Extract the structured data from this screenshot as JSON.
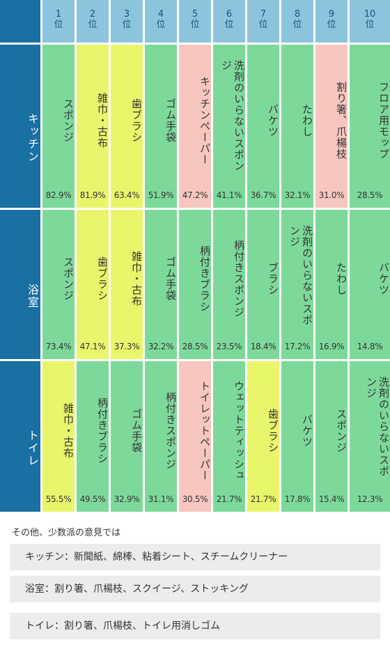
{
  "colors": {
    "header_bg": "#8cc4de",
    "row_header_bg": "#1a6fa3",
    "green": "#7dd99a",
    "yellow": "#e9f56a",
    "pink": "#f7c6bf",
    "other_box_bg": "#ececec"
  },
  "chart_data": {
    "type": "table",
    "rank_suffix": "位",
    "ranks": [
      "1",
      "2",
      "3",
      "4",
      "5",
      "6",
      "7",
      "8",
      "9",
      "10"
    ],
    "rows": [
      {
        "label": "キッチン",
        "items": [
          {
            "name": "スポンジ",
            "percent": "82.9%",
            "color": "green"
          },
          {
            "name": "雑巾・古布",
            "percent": "81.9%",
            "color": "yellow"
          },
          {
            "name": "歯ブラシ",
            "percent": "63.4%",
            "color": "yellow"
          },
          {
            "name": "ゴム手袋",
            "percent": "51.9%",
            "color": "green"
          },
          {
            "name": "キッチンペーパー",
            "percent": "47.2%",
            "color": "pink"
          },
          {
            "name": "洗剤のいらないスポンジ",
            "percent": "41.1%",
            "color": "green"
          },
          {
            "name": "バケツ",
            "percent": "36.7%",
            "color": "green"
          },
          {
            "name": "たわし",
            "percent": "32.1%",
            "color": "green"
          },
          {
            "name": "割り箸、爪楊枝",
            "percent": "31.0%",
            "color": "pink"
          },
          {
            "name": "フロア用モップ",
            "percent": "28.5%",
            "color": "green"
          }
        ]
      },
      {
        "label": "浴室",
        "items": [
          {
            "name": "スポンジ",
            "percent": "73.4%",
            "color": "green"
          },
          {
            "name": "歯ブラシ",
            "percent": "47.1%",
            "color": "yellow"
          },
          {
            "name": "雑巾・古布",
            "percent": "37.3%",
            "color": "yellow"
          },
          {
            "name": "ゴム手袋",
            "percent": "32.2%",
            "color": "green"
          },
          {
            "name": "柄付きブラシ",
            "percent": "28.5%",
            "color": "green"
          },
          {
            "name": "柄付きスポンジ",
            "percent": "23.5%",
            "color": "green"
          },
          {
            "name": "ブラシ",
            "percent": "18.4%",
            "color": "green"
          },
          {
            "name": "洗剤のいらないスポンジ",
            "percent": "17.2%",
            "color": "green"
          },
          {
            "name": "たわし",
            "percent": "16.9%",
            "color": "green"
          },
          {
            "name": "バケツ",
            "percent": "14.8%",
            "color": "green"
          }
        ]
      },
      {
        "label": "トイレ",
        "items": [
          {
            "name": "雑巾・古布",
            "percent": "55.5%",
            "color": "yellow"
          },
          {
            "name": "柄付きブラシ",
            "percent": "49.5%",
            "color": "green"
          },
          {
            "name": "ゴム手袋",
            "percent": "32.9%",
            "color": "green"
          },
          {
            "name": "柄付きスポンジ",
            "percent": "31.1%",
            "color": "green"
          },
          {
            "name": "トイレットペーパー",
            "percent": "30.5%",
            "color": "pink"
          },
          {
            "name": "ウェットティッシュ",
            "percent": "21.7%",
            "color": "green"
          },
          {
            "name": "歯ブラシ",
            "percent": "21.7%",
            "color": "yellow"
          },
          {
            "name": "バケツ",
            "percent": "17.8%",
            "color": "green"
          },
          {
            "name": "スポンジ",
            "percent": "15.4%",
            "color": "green"
          },
          {
            "name": "洗剤のいらないスポンジ",
            "percent": "12.3%",
            "color": "green"
          }
        ]
      }
    ]
  },
  "others": {
    "label": "その他、少数派の意見では",
    "items": [
      "キッチン：新聞紙、綿棒、粘着シート、スチームクリーナー",
      "浴室：割り箸、爪楊枝、スクイージ、ストッキング",
      "トイレ：割り箸、爪楊枝、トイレ用消しゴム"
    ]
  }
}
